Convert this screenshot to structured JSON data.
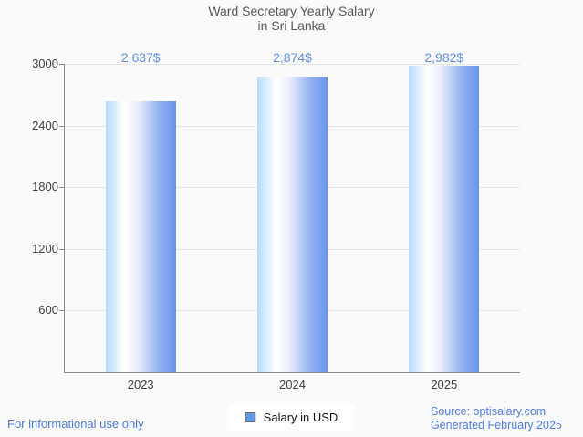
{
  "title": {
    "line1": "Ward Secretary Yearly Salary",
    "line2": "in Sri Lanka"
  },
  "legend": {
    "label": "Salary in USD",
    "swatch_color": "#5f9ae6",
    "swatch_border_color": "#6e6e6e"
  },
  "footer": {
    "disclaimer": "For informational use only",
    "source_line1": "Source: optisalary.com",
    "source_line2": "Generated February 2025"
  },
  "colors": {
    "background": "#fafafa",
    "gridline": "#e6e6e6",
    "axis": "#8a8a8a",
    "axis_label": "#404040",
    "title": "#58585a",
    "footer_blue": "#4d7ee3"
  },
  "chart_data": {
    "type": "bar",
    "title": "Ward Secretary Yearly Salary in Sri Lanka",
    "categories": [
      "2023",
      "2024",
      "2025"
    ],
    "series": [
      {
        "name": "Salary in USD",
        "values": [
          2637,
          2874,
          2982
        ]
      }
    ],
    "value_labels": [
      "2,637$",
      "2,874$",
      "2,982$"
    ],
    "xlabel": "",
    "ylabel": "",
    "ylim": [
      0,
      3000
    ],
    "yticks": [
      600,
      1200,
      1800,
      2400,
      3000
    ],
    "grid": true,
    "legend_position": "bottom",
    "annotation_color": "#6191e4",
    "bar_gradient": [
      {
        "color": "#b7dafb",
        "pos": 0
      },
      {
        "color": "#ffffff",
        "pos": 26
      },
      {
        "color": "#e9effc",
        "pos": 45
      },
      {
        "color": "#94b3f3",
        "pos": 75
      },
      {
        "color": "#6b94ee",
        "pos": 100
      }
    ]
  }
}
